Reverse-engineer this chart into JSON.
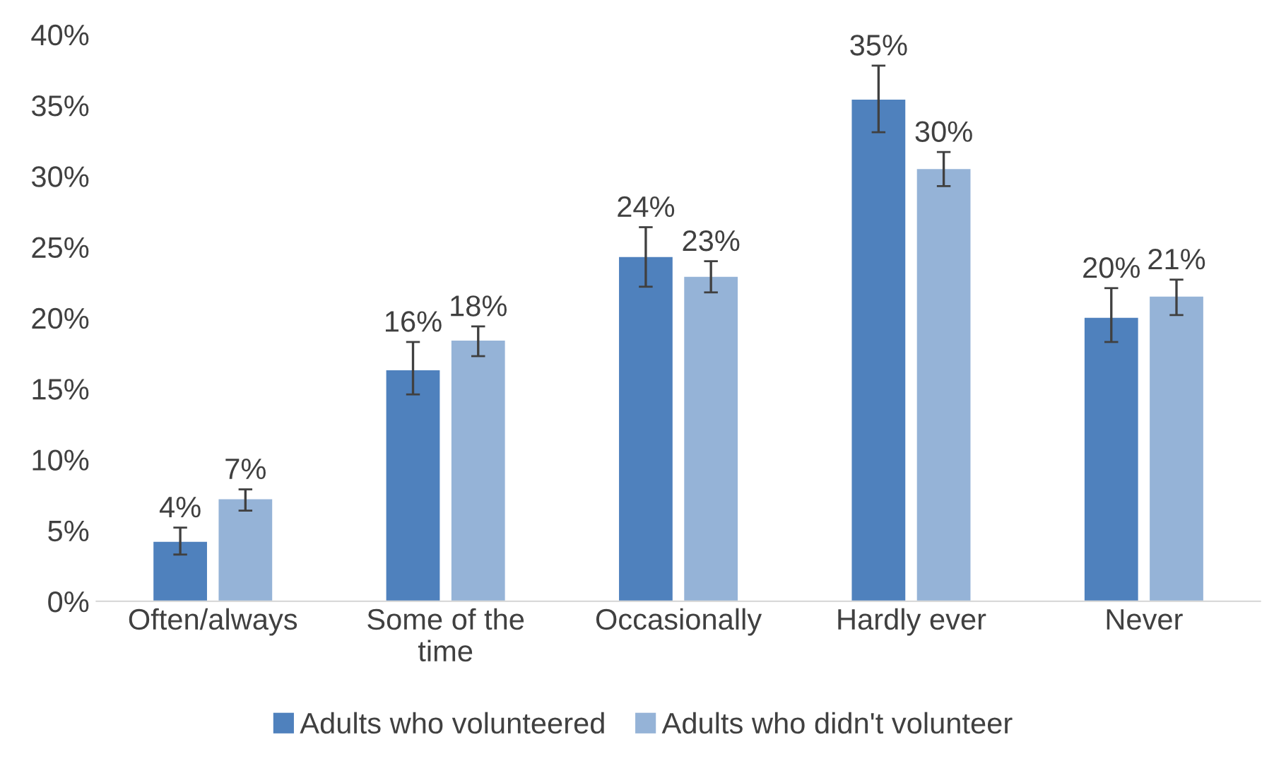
{
  "chart_data": {
    "type": "bar",
    "categories": [
      "Often/always",
      "Some of the time",
      "Occasionally",
      "Hardly ever",
      "Never"
    ],
    "series": [
      {
        "name": "Adults who volunteered",
        "color": "#4f81bd",
        "values": [
          4.2,
          16.3,
          24.3,
          35.4,
          20.0
        ],
        "errors": [
          [
            3.3,
            5.2
          ],
          [
            14.6,
            18.3
          ],
          [
            22.2,
            26.4
          ],
          [
            33.1,
            37.8
          ],
          [
            18.3,
            22.1
          ]
        ],
        "value_labels": [
          "4%",
          "16%",
          "24%",
          "35%",
          "20%"
        ]
      },
      {
        "name": "Adults who didn't volunteer",
        "color": "#95b3d7",
        "values": [
          7.2,
          18.4,
          22.9,
          30.5,
          21.5
        ],
        "errors": [
          [
            6.4,
            7.9
          ],
          [
            17.3,
            19.4
          ],
          [
            21.8,
            24.0
          ],
          [
            29.3,
            31.7
          ],
          [
            20.2,
            22.7
          ]
        ],
        "value_labels": [
          "7%",
          "18%",
          "23%",
          "30%",
          "21%"
        ]
      }
    ],
    "ylim": [
      0,
      40
    ],
    "yticks": [
      {
        "value": 0,
        "label": "0%"
      },
      {
        "value": 5,
        "label": "5%"
      },
      {
        "value": 10,
        "label": "10%"
      },
      {
        "value": 15,
        "label": "15%"
      },
      {
        "value": 20,
        "label": "20%"
      },
      {
        "value": 25,
        "label": "25%"
      },
      {
        "value": 30,
        "label": "30%"
      },
      {
        "value": 35,
        "label": "35%"
      },
      {
        "value": 40,
        "label": "40%"
      }
    ],
    "grid": false,
    "legend": "bottom"
  }
}
